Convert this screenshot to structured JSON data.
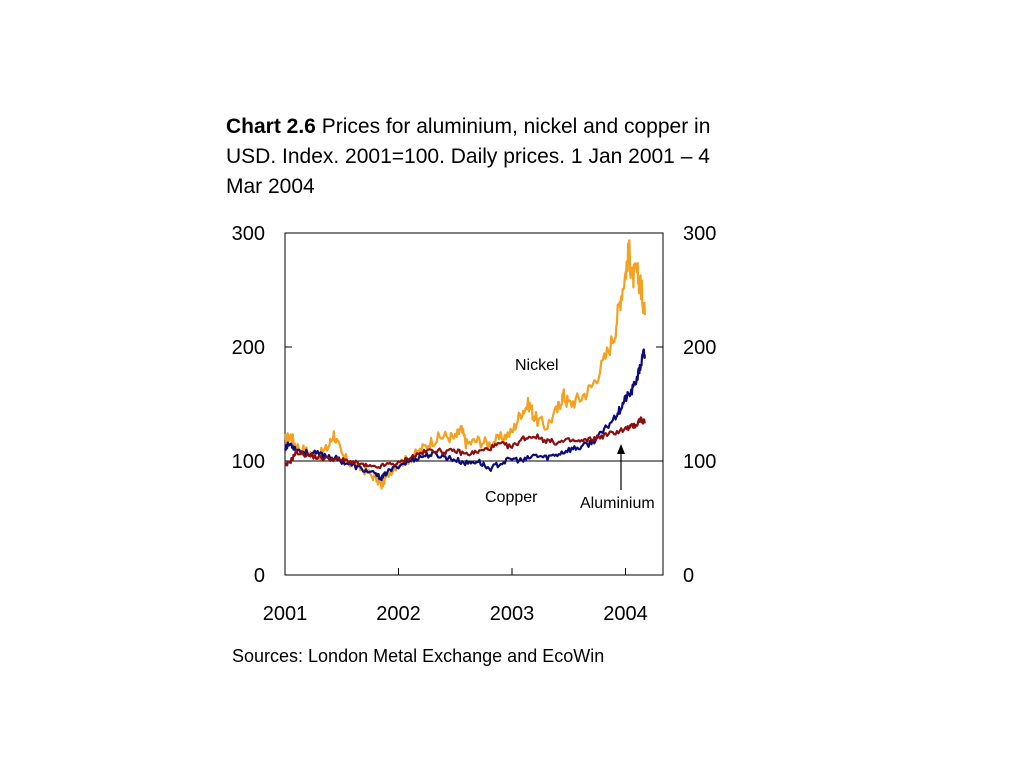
{
  "title": {
    "bold": "Chart 2.6",
    "text": "Prices for aluminium, nickel and copper in USD. Index. 2001=100. Daily prices. 1 Jan 2001 – 4 Mar 2004"
  },
  "source": "Sources: London Metal Exchange and EcoWin",
  "colors": {
    "nickel": "#f5a01e",
    "copper": "#0d0d7a",
    "aluminium": "#8b0f0f",
    "axis": "#000000"
  },
  "chart_data": {
    "type": "line",
    "ylim": [
      0,
      300
    ],
    "xlim": [
      2001.0,
      2004.3
    ],
    "y_ticks": [
      0,
      100,
      200,
      300
    ],
    "y_tick_labels": [
      "0",
      "100",
      "200",
      "300"
    ],
    "y_tick_labels_right": [
      "0",
      "100",
      "200",
      "300"
    ],
    "x_ticks": [
      2001,
      2002,
      2003,
      2004
    ],
    "x_tick_labels": [
      "2001",
      "2002",
      "2003",
      "2004"
    ],
    "reference_line": 100,
    "annotations": [
      {
        "text": "Nickel",
        "series": "Nickel"
      },
      {
        "text": "Copper",
        "series": "Copper"
      },
      {
        "text": "Aluminium",
        "series": "Aluminium",
        "arrow": true
      }
    ],
    "series": [
      {
        "name": "Nickel",
        "color": "#f5a01e",
        "x": [
          2001.0,
          2001.05,
          2001.1,
          2001.2,
          2001.3,
          2001.38,
          2001.43,
          2001.5,
          2001.6,
          2001.7,
          2001.8,
          2001.85,
          2001.9,
          2002.0,
          2002.1,
          2002.2,
          2002.3,
          2002.4,
          2002.5,
          2002.55,
          2002.6,
          2002.7,
          2002.8,
          2002.9,
          2003.0,
          2003.08,
          2003.15,
          2003.2,
          2003.3,
          2003.4,
          2003.45,
          2003.5,
          2003.6,
          2003.7,
          2003.8,
          2003.9,
          2003.95,
          2004.0,
          2004.03,
          2004.06,
          2004.1,
          2004.13,
          2004.15,
          2004.17
        ],
        "values": [
          118,
          122,
          113,
          108,
          105,
          112,
          124,
          105,
          96,
          92,
          85,
          78,
          88,
          98,
          102,
          110,
          118,
          122,
          120,
          128,
          115,
          118,
          115,
          120,
          125,
          143,
          150,
          138,
          130,
          145,
          158,
          150,
          155,
          165,
          185,
          210,
          240,
          265,
          285,
          260,
          265,
          255,
          245,
          228
        ]
      },
      {
        "name": "Copper",
        "color": "#0d0d7a",
        "x": [
          2001.0,
          2001.05,
          2001.1,
          2001.2,
          2001.3,
          2001.4,
          2001.5,
          2001.6,
          2001.7,
          2001.8,
          2001.85,
          2001.9,
          2002.0,
          2002.1,
          2002.2,
          2002.3,
          2002.4,
          2002.5,
          2002.6,
          2002.7,
          2002.8,
          2002.9,
          2003.0,
          2003.1,
          2003.2,
          2003.3,
          2003.4,
          2003.5,
          2003.6,
          2003.7,
          2003.8,
          2003.9,
          2003.95,
          2004.0,
          2004.05,
          2004.1,
          2004.13,
          2004.16,
          2004.17
        ],
        "values": [
          112,
          115,
          110,
          107,
          106,
          104,
          100,
          96,
          92,
          88,
          85,
          90,
          96,
          100,
          104,
          106,
          104,
          101,
          98,
          100,
          93,
          98,
          102,
          100,
          105,
          103,
          106,
          110,
          112,
          116,
          125,
          138,
          145,
          155,
          160,
          172,
          182,
          195,
          190
        ]
      },
      {
        "name": "Aluminium",
        "color": "#8b0f0f",
        "x": [
          2001.0,
          2001.05,
          2001.1,
          2001.2,
          2001.3,
          2001.4,
          2001.5,
          2001.6,
          2001.7,
          2001.8,
          2001.9,
          2002.0,
          2002.1,
          2002.2,
          2002.3,
          2002.4,
          2002.5,
          2002.6,
          2002.7,
          2002.8,
          2002.9,
          2003.0,
          2003.1,
          2003.2,
          2003.3,
          2003.4,
          2003.5,
          2003.6,
          2003.7,
          2003.8,
          2003.9,
          2004.0,
          2004.05,
          2004.1,
          2004.13,
          2004.17
        ],
        "values": [
          95,
          100,
          108,
          105,
          103,
          102,
          101,
          99,
          96,
          94,
          97,
          98,
          103,
          107,
          110,
          108,
          109,
          106,
          108,
          111,
          115,
          112,
          120,
          122,
          118,
          116,
          118,
          117,
          119,
          122,
          125,
          128,
          130,
          132,
          137,
          133
        ]
      }
    ]
  }
}
